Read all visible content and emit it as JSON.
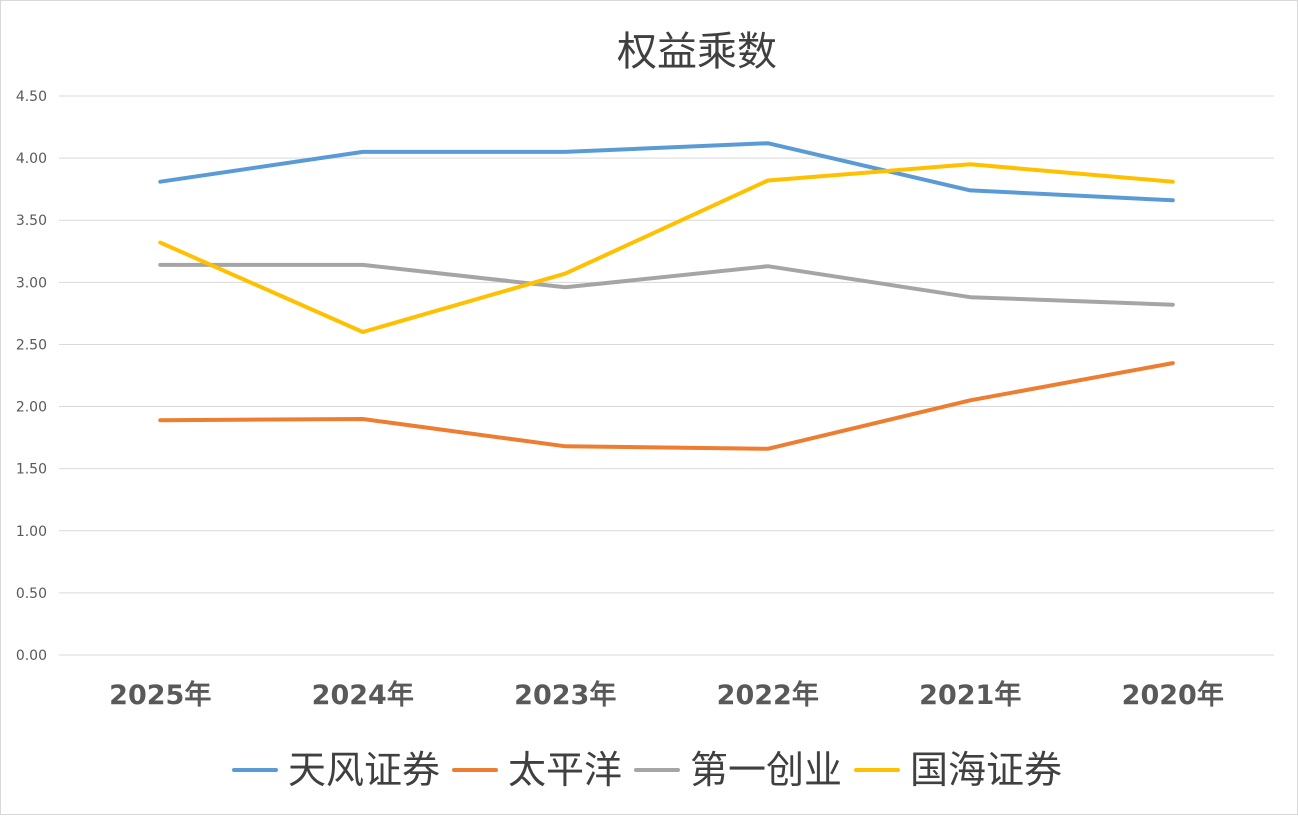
{
  "chart_data": {
    "type": "line",
    "title": "权益乘数",
    "categories": [
      "2025年",
      "2024年",
      "2023年",
      "2022年",
      "2021年",
      "2020年"
    ],
    "ylim": [
      0,
      4.5
    ],
    "yticks": [
      "0.00",
      "0.50",
      "1.00",
      "1.50",
      "2.00",
      "2.50",
      "3.00",
      "3.50",
      "4.00",
      "4.50"
    ],
    "ytick_values": [
      0,
      0.5,
      1.0,
      1.5,
      2.0,
      2.5,
      3.0,
      3.5,
      4.0,
      4.5
    ],
    "grid": true,
    "legend_position": "bottom",
    "series": [
      {
        "name": "天风证券",
        "color": "#5b9bd5",
        "values": [
          3.81,
          4.05,
          4.05,
          4.12,
          3.74,
          3.66
        ]
      },
      {
        "name": "太平洋",
        "color": "#ed7d31",
        "values": [
          1.89,
          1.9,
          1.68,
          1.66,
          2.05,
          2.35
        ]
      },
      {
        "name": "第一创业",
        "color": "#a5a5a5",
        "values": [
          3.14,
          3.14,
          2.96,
          3.13,
          2.88,
          2.82
        ]
      },
      {
        "name": "国海证券",
        "color": "#ffc000",
        "values": [
          3.32,
          2.6,
          3.07,
          3.82,
          3.95,
          3.81
        ]
      }
    ]
  }
}
